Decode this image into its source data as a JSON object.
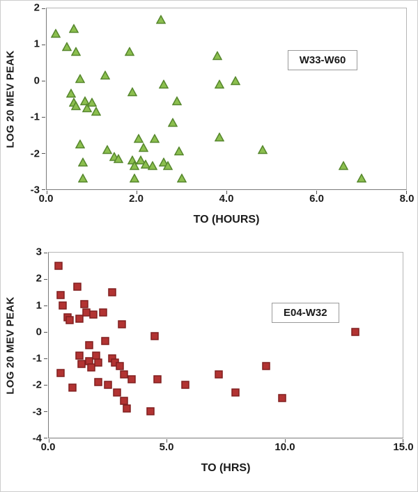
{
  "chart_data": [
    {
      "type": "scatter",
      "annotation": "W33-W60",
      "xlabel": "TO (HOURS)",
      "ylabel": "LOG 20 MEV PEAK",
      "marker": "triangle",
      "marker_color": "#8cbf4f",
      "marker_edge_color": "#55862c",
      "xlim": [
        0,
        8
      ],
      "ylim": [
        -3,
        2
      ],
      "xticks": [
        "0.0",
        "2.0",
        "4.0",
        "6.0",
        "8.0"
      ],
      "xtick_values": [
        0,
        2,
        4,
        6,
        8
      ],
      "yticks": [
        "2",
        "1",
        "0",
        "-1",
        "-2",
        "-3"
      ],
      "ytick_values": [
        2,
        1,
        0,
        -1,
        -2,
        -3
      ],
      "grid": false,
      "legend_position": "none",
      "points": [
        [
          0.2,
          1.3
        ],
        [
          0.45,
          0.95
        ],
        [
          0.6,
          1.45
        ],
        [
          0.65,
          0.8
        ],
        [
          0.55,
          -0.35
        ],
        [
          0.6,
          -0.6
        ],
        [
          0.65,
          -0.7
        ],
        [
          0.75,
          0.05
        ],
        [
          0.85,
          -0.55
        ],
        [
          0.9,
          -0.75
        ],
        [
          0.75,
          -1.75
        ],
        [
          0.8,
          -2.25
        ],
        [
          0.8,
          -2.7
        ],
        [
          1.0,
          -0.6
        ],
        [
          1.1,
          -0.85
        ],
        [
          1.3,
          0.15
        ],
        [
          1.35,
          -1.9
        ],
        [
          1.5,
          -2.1
        ],
        [
          1.6,
          -2.15
        ],
        [
          1.85,
          0.8
        ],
        [
          1.9,
          -0.3
        ],
        [
          1.9,
          -2.2
        ],
        [
          1.95,
          -2.35
        ],
        [
          1.95,
          -2.7
        ],
        [
          2.05,
          -1.6
        ],
        [
          2.1,
          -2.2
        ],
        [
          2.15,
          -1.85
        ],
        [
          2.2,
          -2.3
        ],
        [
          2.35,
          -2.35
        ],
        [
          2.4,
          -1.6
        ],
        [
          2.55,
          1.7
        ],
        [
          2.6,
          -0.1
        ],
        [
          2.6,
          -2.25
        ],
        [
          2.7,
          -2.35
        ],
        [
          2.8,
          -1.15
        ],
        [
          2.9,
          -0.55
        ],
        [
          2.95,
          -1.95
        ],
        [
          3.0,
          -2.7
        ],
        [
          3.8,
          0.7
        ],
        [
          3.85,
          -0.1
        ],
        [
          3.85,
          -1.55
        ],
        [
          4.2,
          0.0
        ],
        [
          4.8,
          -1.9
        ],
        [
          6.6,
          -2.35
        ],
        [
          7.0,
          -2.7
        ]
      ]
    },
    {
      "type": "scatter",
      "annotation": "E04-W32",
      "xlabel": "TO (HRS)",
      "ylabel": "LOG 20 MEV PEAK",
      "marker": "square",
      "marker_color": "#b23332",
      "marker_edge_color": "#801f1f",
      "xlim": [
        0,
        15
      ],
      "ylim": [
        -4,
        3
      ],
      "xticks": [
        "0.0",
        "5.0",
        "10.0",
        "15.0"
      ],
      "xtick_values": [
        0,
        5,
        10,
        15
      ],
      "yticks": [
        "3",
        "2",
        "1",
        "0",
        "-1",
        "-2",
        "-3",
        "-4"
      ],
      "ytick_values": [
        3,
        2,
        1,
        0,
        -1,
        -2,
        -3,
        -4
      ],
      "grid": false,
      "legend_position": "none",
      "points": [
        [
          0.4,
          2.5
        ],
        [
          0.5,
          1.4
        ],
        [
          0.6,
          1.0
        ],
        [
          0.5,
          -1.55
        ],
        [
          0.8,
          0.55
        ],
        [
          0.9,
          0.45
        ],
        [
          1.0,
          -2.1
        ],
        [
          1.2,
          1.7
        ],
        [
          1.3,
          0.5
        ],
        [
          1.3,
          -0.9
        ],
        [
          1.4,
          -1.2
        ],
        [
          1.5,
          1.05
        ],
        [
          1.6,
          0.75
        ],
        [
          1.7,
          -0.5
        ],
        [
          1.7,
          -1.1
        ],
        [
          1.8,
          -1.35
        ],
        [
          1.9,
          0.65
        ],
        [
          2.0,
          -0.9
        ],
        [
          2.1,
          -1.15
        ],
        [
          2.1,
          -1.9
        ],
        [
          2.3,
          0.75
        ],
        [
          2.4,
          -0.35
        ],
        [
          2.5,
          -2.0
        ],
        [
          2.7,
          1.5
        ],
        [
          2.7,
          -1.0
        ],
        [
          2.8,
          -1.15
        ],
        [
          2.9,
          -2.3
        ],
        [
          3.0,
          -1.3
        ],
        [
          3.1,
          0.3
        ],
        [
          3.2,
          -1.6
        ],
        [
          3.2,
          -2.6
        ],
        [
          3.3,
          -2.9
        ],
        [
          3.5,
          -1.8
        ],
        [
          4.3,
          -3.0
        ],
        [
          4.5,
          -0.15
        ],
        [
          4.6,
          -1.8
        ],
        [
          5.8,
          -2.0
        ],
        [
          7.2,
          -1.6
        ],
        [
          7.9,
          -2.3
        ],
        [
          9.2,
          -1.3
        ],
        [
          9.9,
          -2.5
        ],
        [
          13.0,
          0.0
        ]
      ]
    }
  ]
}
